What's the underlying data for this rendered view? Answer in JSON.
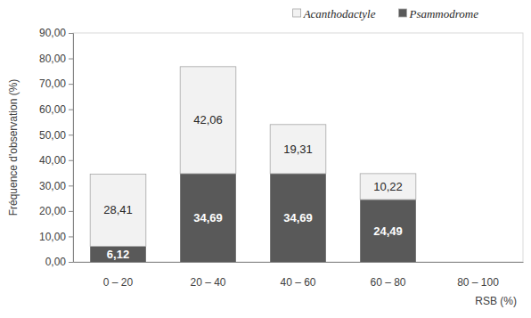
{
  "chart_data": {
    "type": "bar",
    "stacked": true,
    "data_labels": true,
    "grid": false,
    "legend": "top-right",
    "x_label": "RSB (%)",
    "y_label": "Fréquence d'observation (%)",
    "categories": [
      "0 – 20",
      "20 – 40",
      "40 – 60",
      "60 – 80",
      "80 – 100"
    ],
    "ylim": [
      0,
      90
    ],
    "yticks": [
      {
        "value": 0,
        "label": "0,00"
      },
      {
        "value": 10,
        "label": "10,00"
      },
      {
        "value": 20,
        "label": "20,00"
      },
      {
        "value": 30,
        "label": "30,00"
      },
      {
        "value": 40,
        "label": "40,00"
      },
      {
        "value": 50,
        "label": "50,00"
      },
      {
        "value": 60,
        "label": "60,00"
      },
      {
        "value": 70,
        "label": "70,00"
      },
      {
        "value": 80,
        "label": "80,00"
      },
      {
        "value": 90,
        "label": "90,00"
      }
    ],
    "series": [
      {
        "name": "Psammodrome",
        "color": "#595959",
        "values": [
          6.12,
          34.69,
          34.69,
          24.49,
          null
        ],
        "value_labels": [
          "6,12",
          "34,69",
          "34,69",
          "24,49",
          null
        ]
      },
      {
        "name": "Acanthodactyle",
        "color": "#f2f2f2",
        "values": [
          28.41,
          42.06,
          19.31,
          10.22,
          null
        ],
        "value_labels": [
          "28,41",
          "42,06",
          "19,31",
          "10,22",
          null
        ]
      }
    ]
  }
}
